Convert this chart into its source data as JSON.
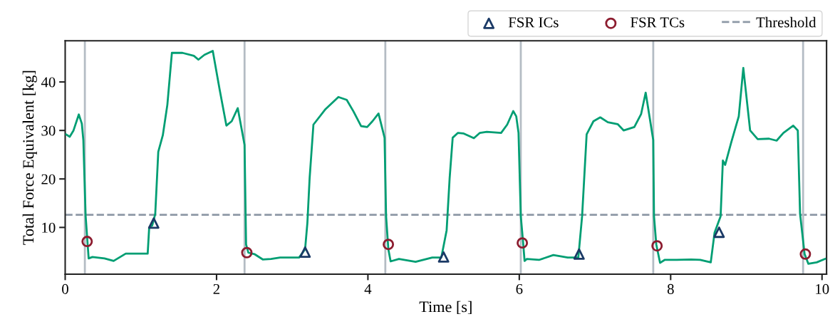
{
  "chart_data": {
    "type": "line",
    "xlabel": "Time [s]",
    "ylabel": "Total Force Equivalent [kg]",
    "xlim": [
      0,
      10.06
    ],
    "ylim": [
      0.35,
      48.5
    ],
    "xticks": [
      0,
      2,
      4,
      6,
      8,
      10
    ],
    "yticks": [
      10,
      20,
      30,
      40
    ],
    "grid": false,
    "legend": "top right",
    "line_style": "solid",
    "series": [
      {
        "color": "#009e73",
        "marker": "none",
        "x": [
          0.01,
          0.06,
          0.11,
          0.18,
          0.22,
          0.24,
          0.27,
          0.31,
          0.36,
          0.52,
          0.64,
          0.8,
          0.96,
          1.09,
          1.11,
          1.15,
          1.19,
          1.23,
          1.29,
          1.35,
          1.41,
          1.55,
          1.7,
          1.76,
          1.84,
          1.95,
          2.04,
          2.13,
          2.2,
          2.28,
          2.37,
          2.39,
          2.42,
          2.5,
          2.61,
          2.72,
          2.84,
          3.09,
          3.17,
          3.2,
          3.23,
          3.28,
          3.44,
          3.61,
          3.72,
          3.81,
          3.91,
          3.99,
          4.06,
          4.14,
          4.22,
          4.24,
          4.27,
          4.3,
          4.41,
          4.63,
          4.85,
          4.97,
          5.04,
          5.08,
          5.12,
          5.19,
          5.26,
          5.4,
          5.48,
          5.57,
          5.76,
          5.84,
          5.92,
          5.96,
          5.99,
          6.02,
          6.05,
          6.07,
          6.1,
          6.26,
          6.45,
          6.64,
          6.78,
          6.83,
          6.89,
          6.98,
          7.07,
          7.17,
          7.3,
          7.38,
          7.52,
          7.61,
          7.67,
          7.77,
          7.78,
          7.81,
          7.86,
          7.92,
          8.08,
          8.27,
          8.39,
          8.53,
          8.58,
          8.66,
          8.69,
          8.72,
          8.8,
          8.9,
          8.96,
          9.05,
          9.15,
          9.3,
          9.4,
          9.49,
          9.62,
          9.68,
          9.71,
          9.77,
          9.82,
          9.93,
          10.04
        ],
        "values": [
          29.2,
          28.7,
          30.0,
          33.3,
          31.4,
          28.0,
          12.4,
          3.6,
          3.9,
          3.6,
          3.1,
          4.6,
          4.6,
          4.6,
          10.0,
          10.4,
          12.8,
          25.6,
          29.0,
          35.3,
          46.0,
          46.0,
          45.4,
          44.6,
          45.6,
          46.4,
          38.5,
          31.0,
          31.9,
          34.6,
          27.0,
          6.5,
          4.8,
          4.5,
          3.4,
          3.5,
          3.8,
          3.8,
          5.5,
          10.9,
          20.2,
          31.2,
          34.4,
          36.9,
          36.3,
          33.9,
          30.9,
          30.7,
          31.9,
          33.5,
          28.5,
          12.3,
          5.5,
          3.0,
          3.5,
          2.9,
          3.8,
          3.8,
          9.4,
          20.2,
          28.5,
          29.5,
          29.4,
          28.4,
          29.5,
          29.7,
          29.5,
          31.2,
          34.0,
          32.9,
          29.5,
          12.3,
          7.0,
          3.1,
          3.5,
          3.3,
          4.3,
          3.8,
          3.8,
          12.3,
          29.2,
          31.9,
          32.7,
          31.7,
          31.3,
          30.0,
          30.7,
          33.4,
          37.8,
          28.0,
          12.3,
          6.5,
          2.7,
          3.3,
          3.3,
          3.4,
          3.3,
          2.8,
          8.9,
          12.3,
          23.8,
          22.9,
          27.5,
          32.9,
          42.9,
          30.0,
          28.2,
          28.3,
          27.9,
          29.5,
          31.0,
          30.0,
          12.8,
          4.5,
          2.5,
          2.8,
          3.5
        ]
      },
      {
        "type": "scatter",
        "name": "FSR ICs",
        "color": "#1b3a66",
        "marker": "triangle",
        "x": [
          1.17,
          3.17,
          5.0,
          6.79,
          8.64
        ],
        "values": [
          10.9,
          4.9,
          3.9,
          4.5,
          9.0
        ]
      },
      {
        "type": "scatter",
        "name": "FSR TCs",
        "color": "#8c1c2f",
        "marker": "circle",
        "x": [
          0.29,
          2.4,
          4.27,
          6.04,
          7.82,
          9.78
        ],
        "values": [
          7.1,
          4.8,
          6.5,
          6.8,
          6.2,
          4.5
        ]
      }
    ],
    "ref_lines": [
      {
        "axis": "y",
        "value": 12.6,
        "label": "Threshold",
        "color": "#8e99a6",
        "line_style": "dashed"
      },
      {
        "axis": "x",
        "value": 0.26,
        "color": "#b4bcc4",
        "line_style": "solid"
      },
      {
        "axis": "x",
        "value": 2.37,
        "color": "#b4bcc4",
        "line_style": "solid"
      },
      {
        "axis": "x",
        "value": 4.23,
        "color": "#b4bcc4",
        "line_style": "solid"
      },
      {
        "axis": "x",
        "value": 6.02,
        "color": "#b4bcc4",
        "line_style": "solid"
      },
      {
        "axis": "x",
        "value": 7.77,
        "color": "#b4bcc4",
        "line_style": "solid"
      },
      {
        "axis": "x",
        "value": 9.75,
        "color": "#b4bcc4",
        "line_style": "solid"
      }
    ]
  }
}
